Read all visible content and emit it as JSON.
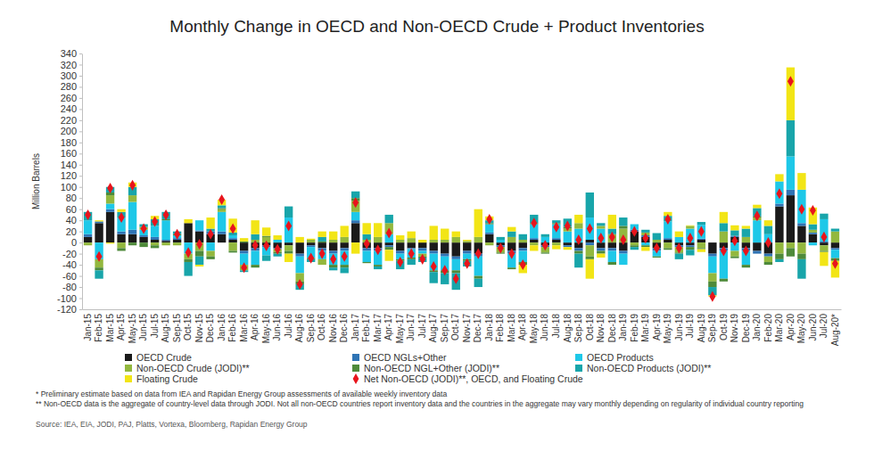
{
  "chart_data": {
    "type": "bar",
    "title": "Monthly Change in OECD and Non-OECD Crude + Product Inventories",
    "y_label": "Million Barrels",
    "categories": [
      "Jan-15",
      "Feb-15",
      "Mar-15",
      "Apr-15",
      "May-15",
      "Jun-15",
      "Jul-15",
      "Aug-15",
      "Sep-15",
      "Oct-15",
      "Nov-15",
      "Dec-15",
      "Jan-16",
      "Feb-16",
      "Mar-16",
      "Apr-16",
      "May-16",
      "Jun-16",
      "Jul-16",
      "Aug-16",
      "Sep-16",
      "Oct-16",
      "Nov-16",
      "Dec-16",
      "Jan-17",
      "Feb-17",
      "Mar-17",
      "Apr-17",
      "May-17",
      "Jun-17",
      "Jul-17",
      "Aug-17",
      "Sep-17",
      "Oct-17",
      "Nov-17",
      "Dec-17",
      "Jan-18",
      "Feb-18",
      "Mar-18",
      "Apr-18",
      "May-18",
      "Jun-18",
      "Jul-18",
      "Aug-18",
      "Sep-18",
      "Oct-18",
      "Nov-18",
      "Dec-18",
      "Jan-19",
      "Feb-19",
      "Mar-19",
      "Apr-19",
      "May-19",
      "Jun-19",
      "Jul-19",
      "Aug-19",
      "Sep-19",
      "Oct-19",
      "Nov-19",
      "Dec-19",
      "Jan-20",
      "Feb-20",
      "Mar-20",
      "Apr-20",
      "May-20",
      "Jun-20",
      "Jul-20",
      "Aug-20*"
    ],
    "series": [
      {
        "name": "OECD Crude",
        "color": "#1a1a1a",
        "type": "bar",
        "values": [
          10,
          35,
          55,
          15,
          15,
          10,
          5,
          3,
          5,
          35,
          20,
          15,
          15,
          5,
          -15,
          -10,
          -5,
          -10,
          -5,
          -20,
          -5,
          -10,
          -15,
          -10,
          35,
          -10,
          -10,
          -5,
          -15,
          -10,
          -10,
          -15,
          -20,
          -25,
          -15,
          -20,
          15,
          -5,
          -15,
          -10,
          5,
          -5,
          5,
          -5,
          -10,
          5,
          -10,
          -10,
          -15,
          20,
          10,
          -10,
          5,
          -5,
          -5,
          5,
          -20,
          -10,
          10,
          -10,
          -15,
          -20,
          65,
          85,
          30,
          15,
          -5,
          -10
        ]
      },
      {
        "name": "OECD NGLs+Other",
        "color": "#2f74b5",
        "type": "bar",
        "values": [
          5,
          3,
          5,
          5,
          8,
          3,
          5,
          2,
          3,
          0,
          2,
          5,
          5,
          3,
          -5,
          -5,
          -3,
          -2,
          0,
          -5,
          -3,
          -5,
          -5,
          -5,
          5,
          -5,
          -5,
          -3,
          -5,
          -2,
          -5,
          -5,
          -5,
          -5,
          -5,
          -5,
          3,
          -3,
          -5,
          -5,
          3,
          -3,
          3,
          -3,
          -5,
          -5,
          -5,
          -5,
          -5,
          3,
          3,
          -5,
          3,
          -3,
          -3,
          2,
          -5,
          -5,
          2,
          -5,
          -5,
          -5,
          5,
          10,
          5,
          3,
          2,
          -3
        ]
      },
      {
        "name": "OECD Products",
        "color": "#1ec8e8",
        "type": "bar",
        "values": [
          25,
          -30,
          10,
          25,
          50,
          10,
          20,
          35,
          5,
          -20,
          18,
          -15,
          35,
          5,
          -20,
          -25,
          -15,
          5,
          45,
          -30,
          -20,
          -15,
          -20,
          -25,
          15,
          -20,
          -25,
          15,
          -10,
          -15,
          -5,
          -30,
          -25,
          -20,
          -10,
          -35,
          15,
          5,
          -25,
          -20,
          25,
          10,
          25,
          20,
          25,
          40,
          25,
          -20,
          -20,
          10,
          -5,
          -10,
          30,
          10,
          25,
          25,
          -30,
          -50,
          -15,
          -25,
          40,
          15,
          40,
          60,
          60,
          -5,
          40,
          -15
        ]
      },
      {
        "name": "Non-OECD Crude (JODI)**",
        "color": "#93b83e",
        "type": "bar",
        "values": [
          -5,
          -15,
          15,
          -10,
          12,
          5,
          -5,
          -5,
          -5,
          -10,
          -15,
          -10,
          5,
          -15,
          -10,
          5,
          10,
          -5,
          -10,
          -15,
          5,
          -10,
          5,
          10,
          20,
          5,
          10,
          20,
          5,
          8,
          -5,
          5,
          5,
          10,
          3,
          10,
          -5,
          -10,
          10,
          5,
          -5,
          -10,
          -5,
          5,
          10,
          -20,
          5,
          15,
          25,
          -5,
          5,
          5,
          -10,
          -10,
          5,
          -10,
          -15,
          20,
          -10,
          10,
          5,
          -10,
          -20,
          -10,
          -20,
          5,
          -10,
          20
        ]
      },
      {
        "name": "Non-OECD NGL+Other (JODI)**",
        "color": "#4e8a3a",
        "type": "bar",
        "values": [
          0,
          -5,
          5,
          -5,
          -5,
          -8,
          -5,
          2,
          2,
          -5,
          -10,
          -5,
          2,
          -3,
          2,
          -5,
          2,
          -3,
          -5,
          -5,
          -2,
          2,
          -5,
          -5,
          5,
          -2,
          -3,
          -5,
          -3,
          -3,
          -2,
          -3,
          -5,
          -5,
          -3,
          -5,
          2,
          -2,
          -3,
          -5,
          2,
          -2,
          2,
          3,
          -5,
          -5,
          -5,
          -5,
          5,
          -3,
          -3,
          -2,
          -3,
          -2,
          -5,
          -2,
          -10,
          -5,
          -3,
          -5,
          2,
          -5,
          -10,
          -15,
          -10,
          0,
          -2,
          -5
        ]
      },
      {
        "name": "Non-OECD Products (JODI)**",
        "color": "#18a5aa",
        "type": "bar",
        "values": [
          15,
          -15,
          10,
          10,
          15,
          5,
          12,
          13,
          5,
          -25,
          -15,
          5,
          5,
          5,
          -3,
          10,
          -10,
          -5,
          20,
          -10,
          -5,
          8,
          -5,
          -10,
          12,
          10,
          -5,
          15,
          -15,
          -10,
          -8,
          -20,
          -20,
          -30,
          -10,
          -15,
          5,
          5,
          10,
          10,
          15,
          5,
          5,
          15,
          -25,
          45,
          5,
          10,
          15,
          -5,
          5,
          12,
          10,
          -10,
          -10,
          5,
          -15,
          15,
          10,
          15,
          15,
          15,
          -5,
          65,
          -35,
          10,
          10,
          5
        ]
      },
      {
        "name": "Floating Crude",
        "color": "#f2e516",
        "type": "bar",
        "values": [
          0,
          2,
          -2,
          5,
          8,
          0,
          6,
          0,
          0,
          7,
          -3,
          20,
          10,
          25,
          6,
          25,
          15,
          8,
          -15,
          10,
          2,
          10,
          15,
          20,
          -20,
          20,
          25,
          -20,
          8,
          12,
          5,
          25,
          20,
          10,
          2,
          50,
          7,
          0,
          8,
          -15,
          -10,
          0,
          -7,
          -5,
          15,
          -35,
          -7,
          25,
          0,
          0,
          -7,
          0,
          7,
          10,
          1,
          -5,
          -2,
          20,
          9,
          5,
          6,
          10,
          13,
          95,
          30,
          30,
          -25,
          -30
        ]
      },
      {
        "name": "Net Non-OECD (JODI)**, OECD, and Floating Crude",
        "color": "#e8141c",
        "type": "scatter",
        "marker": "diamond",
        "values": [
          50,
          -25,
          98,
          45,
          103,
          25,
          38,
          50,
          15,
          -18,
          -3,
          15,
          77,
          25,
          -45,
          -5,
          -6,
          -12,
          30,
          -75,
          -28,
          -20,
          -30,
          -25,
          72,
          -2,
          -13,
          17,
          -35,
          -20,
          -30,
          -43,
          -50,
          -65,
          -38,
          -20,
          42,
          -10,
          -20,
          -40,
          35,
          -5,
          28,
          30,
          5,
          25,
          8,
          10,
          5,
          20,
          8,
          -10,
          42,
          -10,
          8,
          20,
          -97,
          -15,
          3,
          -15,
          48,
          0,
          88,
          290,
          60,
          58,
          10,
          -38
        ]
      }
    ],
    "ylim": [
      -120,
      340
    ],
    "yticks": [
      -120,
      -100,
      -80,
      -60,
      -40,
      -20,
      0,
      20,
      40,
      60,
      80,
      100,
      120,
      140,
      160,
      180,
      200,
      220,
      240,
      260,
      280,
      300,
      320,
      340
    ],
    "stacked": true,
    "grid": false,
    "legend": "bottom",
    "notes": [
      "* Preliminary estimate based on data from IEA and Rapidan Energy Group assessments of available weekly inventory data",
      "** Non-OECD data is the aggregate of country-level data through JODI. Not all non-OECD countries report inventory data and the countries in the aggregate may vary monthly depending on regularity of individual country reporting"
    ],
    "source": "Source: IEA, EIA, JODI, PAJ, Platts, Vortexa, Bloomberg, Rapidan Energy Group"
  }
}
